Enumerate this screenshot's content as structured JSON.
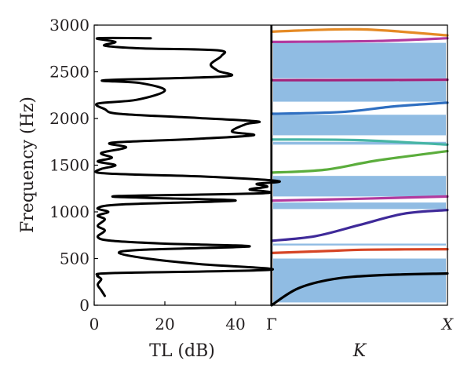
{
  "chart_data": [
    {
      "type": "line",
      "panel": "transmission-loss",
      "xlabel": "TL (dB)",
      "ylabel": "Frequency (Hz)",
      "xlim": [
        0,
        50
      ],
      "ylim": [
        0,
        3000
      ],
      "x_ticks": [
        "0",
        "20",
        "40"
      ],
      "y_ticks": [
        "0",
        "500",
        "1000",
        "1500",
        "2000",
        "2500",
        "3000"
      ],
      "colors": {
        "line": "#000000"
      },
      "series": [
        {
          "points": [
            [
              3,
              100
            ],
            [
              2,
              160
            ],
            [
              1,
              220
            ],
            [
              2,
              280
            ],
            [
              1,
              320
            ],
            [
              6,
              345
            ],
            [
              50,
              380
            ],
            [
              30,
              440
            ],
            [
              15,
              500
            ],
            [
              7,
              560
            ],
            [
              14,
              595
            ],
            [
              44,
              630
            ],
            [
              20,
              660
            ],
            [
              5,
              690
            ],
            [
              1,
              730
            ],
            [
              3,
              800
            ],
            [
              1,
              850
            ],
            [
              3,
              920
            ],
            [
              1,
              960
            ],
            [
              4,
              1000
            ],
            [
              1,
              1040
            ],
            [
              8,
              1080
            ],
            [
              40,
              1120
            ],
            [
              15,
              1150
            ],
            [
              7,
              1170
            ],
            [
              48,
              1200
            ],
            [
              44,
              1240
            ],
            [
              49,
              1270
            ],
            [
              46,
              1300
            ],
            [
              52,
              1330
            ],
            [
              30,
              1380
            ],
            [
              11,
              1400
            ],
            [
              1,
              1420
            ],
            [
              2,
              1460
            ],
            [
              6,
              1500
            ],
            [
              1,
              1540
            ],
            [
              5,
              1580
            ],
            [
              2,
              1630
            ],
            [
              9,
              1690
            ],
            [
              5,
              1740
            ],
            [
              28,
              1780
            ],
            [
              45,
              1820
            ],
            [
              39,
              1860
            ],
            [
              43,
              1940
            ],
            [
              46,
              1970
            ],
            [
              27,
              2010
            ],
            [
              7,
              2050
            ],
            [
              3,
              2100
            ],
            [
              1,
              2160
            ],
            [
              12,
              2200
            ],
            [
              20,
              2300
            ],
            [
              13,
              2380
            ],
            [
              3,
              2410
            ],
            [
              37,
              2450
            ],
            [
              35,
              2510
            ],
            [
              33,
              2580
            ],
            [
              36,
              2670
            ],
            [
              35,
              2730
            ],
            [
              14,
              2750
            ],
            [
              3,
              2780
            ],
            [
              6,
              2820
            ],
            [
              1,
              2860
            ],
            [
              16,
              2860
            ]
          ]
        }
      ]
    },
    {
      "type": "line",
      "panel": "band-structure",
      "xlabel": "K",
      "x_ticks": [
        "Γ",
        "X"
      ],
      "ylim": [
        0,
        3000
      ],
      "band_gaps": [
        [
          30,
          500
        ],
        [
          640,
          660
        ],
        [
          1030,
          1100
        ],
        [
          1165,
          1385
        ],
        [
          1720,
          1750
        ],
        [
          1820,
          2040
        ],
        [
          2180,
          2400
        ],
        [
          2430,
          2810
        ]
      ],
      "band_gap_color": "#8ab8e1",
      "series": [
        {
          "color": "#000000",
          "values": [
            [
              0,
              0
            ],
            [
              0.15,
              180
            ],
            [
              0.35,
              280
            ],
            [
              0.6,
              320
            ],
            [
              1,
              340
            ]
          ]
        },
        {
          "color": "#d64525",
          "values": [
            [
              0,
              560
            ],
            [
              0.3,
              580
            ],
            [
              0.55,
              595
            ],
            [
              1,
              600
            ]
          ]
        },
        {
          "color": "#3f2a99",
          "values": [
            [
              0,
              690
            ],
            [
              0.25,
              740
            ],
            [
              0.5,
              860
            ],
            [
              0.75,
              980
            ],
            [
              1,
              1020
            ]
          ]
        },
        {
          "color": "#b23a9e",
          "values": [
            [
              0,
              1120
            ],
            [
              0.5,
              1140
            ],
            [
              1,
              1165
            ]
          ]
        },
        {
          "color": "#5bad3c",
          "values": [
            [
              0,
              1420
            ],
            [
              0.3,
              1450
            ],
            [
              0.6,
              1550
            ],
            [
              1,
              1650
            ]
          ]
        },
        {
          "color": "#47b5a5",
          "values": [
            [
              0,
              1775
            ],
            [
              0.5,
              1768
            ],
            [
              1,
              1720
            ]
          ]
        },
        {
          "color": "#2f6fc1",
          "values": [
            [
              0,
              2050
            ],
            [
              0.4,
              2070
            ],
            [
              0.7,
              2130
            ],
            [
              1,
              2170
            ]
          ]
        },
        {
          "color": "#a3217a",
          "values": [
            [
              0,
              2410
            ],
            [
              0.5,
              2412
            ],
            [
              1,
              2415
            ]
          ]
        },
        {
          "color": "#b23a9e",
          "values": [
            [
              0,
              2820
            ],
            [
              0.6,
              2830
            ],
            [
              1,
              2860
            ]
          ]
        },
        {
          "color": "#e58a25",
          "values": [
            [
              0,
              2930
            ],
            [
              0.5,
              2955
            ],
            [
              1,
              2890
            ]
          ]
        }
      ]
    }
  ]
}
